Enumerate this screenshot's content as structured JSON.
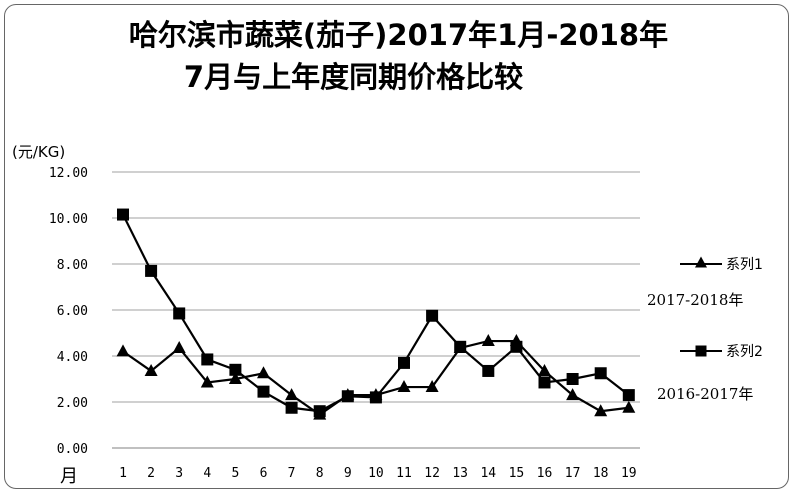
{
  "title_line1": "哈尔滨市蔬菜(茄子)2017年1月-2018年",
  "title_line2": "7月与上年度同期价格比较",
  "y_unit": "(元/KG)",
  "x_unit": "月",
  "chart_data": {
    "type": "line",
    "x": [
      1,
      2,
      3,
      4,
      5,
      6,
      7,
      8,
      9,
      10,
      11,
      12,
      13,
      14,
      15,
      16,
      17,
      18,
      19
    ],
    "ylim": [
      0,
      12
    ],
    "yticks": [
      "0.00",
      "2.00",
      "4.00",
      "6.00",
      "8.00",
      "10.00",
      "12.00"
    ],
    "grid": true,
    "legend_position": "right",
    "series": [
      {
        "name": "系列1",
        "marker": "triangle",
        "values": [
          4.2,
          3.35,
          4.35,
          2.85,
          3.0,
          3.25,
          2.3,
          1.45,
          2.3,
          2.3,
          2.65,
          2.65,
          4.35,
          4.65,
          4.65,
          3.35,
          2.3,
          1.6,
          1.75
        ]
      },
      {
        "name": "系列2",
        "marker": "square",
        "values": [
          10.15,
          7.7,
          5.85,
          3.85,
          3.4,
          2.45,
          1.75,
          1.6,
          2.25,
          2.2,
          3.7,
          5.75,
          4.4,
          3.35,
          4.4,
          2.85,
          3.0,
          3.25,
          2.3
        ]
      }
    ],
    "annotations": [
      "2017-2018年",
      "2016-2017年"
    ]
  }
}
